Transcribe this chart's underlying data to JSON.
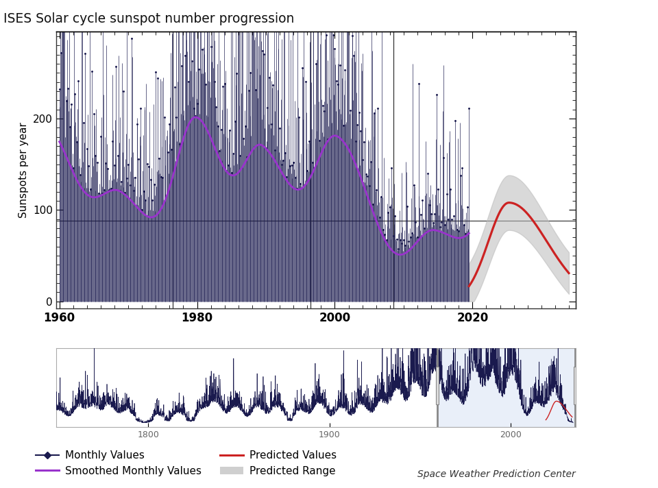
{
  "title": "ISES Solar cycle sunspot number progression",
  "ylabel": "Sunspots per year",
  "axis_bg": "#ffffff",
  "plot_bg": "#ffffff",
  "monthly_color": "#1a1a4e",
  "smoothed_color": "#9933cc",
  "predicted_color": "#cc2222",
  "predicted_range_color": "#bbbbbb",
  "hline_y": 88,
  "hline_color": "#333333",
  "ylim": [
    -8,
    295
  ],
  "xlim_main": [
    1959.5,
    2035
  ],
  "xticks_main": [
    1960,
    1980,
    2000,
    2020
  ],
  "vlines_main": [
    1976.5,
    1996.5,
    2008.5
  ],
  "yticks_main": [
    0,
    100,
    200
  ],
  "overview_bg": "#ffffff",
  "overview_highlight_bg": "#c8d8f0",
  "overview_xlim": [
    1749,
    2036
  ],
  "overview_ylim": [
    -5,
    100
  ],
  "overview_xticks": [
    1800,
    1900,
    2000
  ],
  "footer_text": "Space Weather Prediction Center",
  "legend_items": [
    "Monthly Values",
    "Smoothed Monthly Values",
    "Predicted Values",
    "Predicted Range"
  ]
}
